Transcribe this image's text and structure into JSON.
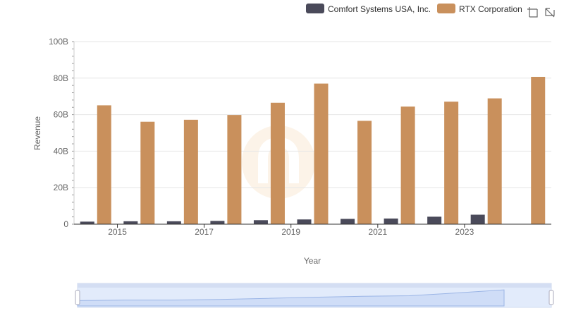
{
  "legend": {
    "items": [
      {
        "label": "Comfort Systems USA, Inc.",
        "color": "#4a4a5a"
      },
      {
        "label": "RTX Corporation",
        "color": "#c9905c"
      }
    ]
  },
  "toolbar": {
    "zoom_icon": "zoom-select-icon",
    "reset_icon": "zoom-reset-icon"
  },
  "chart_data": {
    "type": "bar",
    "xlabel": "Year",
    "ylabel": "Revenue",
    "ylim": [
      0,
      100
    ],
    "y_unit": "B",
    "y_ticks": [
      "0",
      "20B",
      "40B",
      "60B",
      "80B",
      "100B"
    ],
    "x_tick_labels": [
      "2015",
      "2017",
      "2019",
      "2021",
      "2023"
    ],
    "categories": [
      "2014",
      "2015",
      "2016",
      "2017",
      "2018",
      "2019",
      "2020",
      "2021",
      "2022",
      "2023",
      "2024"
    ],
    "series": [
      {
        "name": "Comfort Systems USA, Inc.",
        "color": "#4a4a5a",
        "values": [
          1.4,
          1.6,
          1.6,
          1.8,
          2.2,
          2.6,
          2.9,
          3.1,
          4.1,
          5.2,
          null
        ]
      },
      {
        "name": "RTX Corporation",
        "color": "#c9905c",
        "values": [
          65.1,
          56.1,
          57.2,
          59.8,
          66.5,
          77.0,
          56.6,
          64.4,
          67.1,
          68.9,
          80.7
        ]
      }
    ],
    "grid": true,
    "legend_position": "top-right"
  },
  "range_selector": {
    "start": 0,
    "end": 1
  }
}
